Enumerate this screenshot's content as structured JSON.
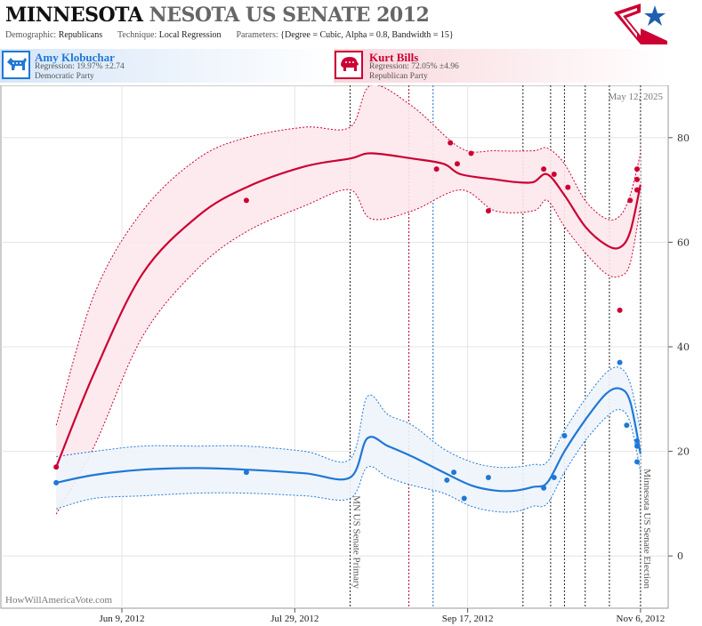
{
  "header": {
    "title_state": "MINNESOTA",
    "title_rest": "NESOTA US SENATE 2012",
    "demographic_label": "Demographic:",
    "demographic_value": "Republicans",
    "technique_label": "Technique:",
    "technique_value": "Local Regression",
    "parameters_label": "Parameters:",
    "parameters_value": "{Degree = Cubic, Alpha = 0.8, Bandwidth = 15}"
  },
  "candidates": {
    "dem": {
      "name": "Amy Klobuchar",
      "regression": "Regression: 19.97% ±2.74",
      "party": "Democratic Party",
      "color": "#1f78d6"
    },
    "rep": {
      "name": "Kurt Bills",
      "regression": "Regression: 72.05% ±4.96",
      "party": "Republican Party",
      "color": "#cc0033"
    }
  },
  "credit": "HowWillAmericaVote.com",
  "date_stamp": "May 12, 2025",
  "chart_data": {
    "type": "line",
    "x_axis": {
      "type": "date",
      "range": [
        "2012-05-05",
        "2012-11-14"
      ],
      "tick_labels": [
        {
          "date": "2012-06-09",
          "label": "Jun 9, 2012"
        },
        {
          "date": "2012-07-29",
          "label": "Jul 29, 2012"
        },
        {
          "date": "2012-09-17",
          "label": "Sep 17, 2012"
        },
        {
          "date": "2012-11-06",
          "label": "Nov 6, 2012"
        }
      ]
    },
    "y_axis": {
      "range": [
        -10,
        90
      ],
      "ticks": [
        0,
        20,
        40,
        60,
        80
      ],
      "position": "right"
    },
    "grid": true,
    "events": [
      {
        "date": "2012-08-14",
        "label": "MN US Senate Primary"
      },
      {
        "date": "2012-11-06",
        "label": "Minnesota US Senate Election"
      }
    ],
    "debate_lines": [
      {
        "date": "2012-08-31",
        "color": "#b0002a"
      },
      {
        "date": "2012-09-07",
        "color": "#1a6fc4"
      },
      {
        "date": "2012-10-03",
        "color": "#222"
      },
      {
        "date": "2012-10-11",
        "color": "#222"
      },
      {
        "date": "2012-10-15",
        "color": "#222"
      },
      {
        "date": "2012-10-21",
        "color": "#222"
      },
      {
        "date": "2012-10-28",
        "color": "#222"
      }
    ],
    "series": [
      {
        "name": "Kurt Bills",
        "color": "#cc0033",
        "band_color": "#fce8ec",
        "polls": [
          {
            "date": "2012-05-21",
            "value": 17
          },
          {
            "date": "2012-07-15",
            "value": 68
          },
          {
            "date": "2012-09-08",
            "value": 74
          },
          {
            "date": "2012-09-12",
            "value": 79
          },
          {
            "date": "2012-09-14",
            "value": 75
          },
          {
            "date": "2012-09-18",
            "value": 77
          },
          {
            "date": "2012-09-23",
            "value": 66
          },
          {
            "date": "2012-10-09",
            "value": 74
          },
          {
            "date": "2012-10-12",
            "value": 73
          },
          {
            "date": "2012-10-16",
            "value": 70.5
          },
          {
            "date": "2012-10-31",
            "value": 47
          },
          {
            "date": "2012-11-03",
            "value": 68
          },
          {
            "date": "2012-11-05",
            "value": 74
          },
          {
            "date": "2012-11-05",
            "value": 72
          },
          {
            "date": "2012-11-05",
            "value": 70
          }
        ],
        "trend": [
          [
            "2012-05-21",
            17
          ],
          [
            "2012-06-01",
            35
          ],
          [
            "2012-06-15",
            54
          ],
          [
            "2012-07-01",
            65
          ],
          [
            "2012-07-15",
            70.5
          ],
          [
            "2012-08-01",
            74.5
          ],
          [
            "2012-08-14",
            76
          ],
          [
            "2012-08-20",
            77
          ],
          [
            "2012-09-01",
            76
          ],
          [
            "2012-09-10",
            75
          ],
          [
            "2012-09-15",
            73
          ],
          [
            "2012-09-25",
            72
          ],
          [
            "2012-10-01",
            71.5
          ],
          [
            "2012-10-06",
            71.5
          ],
          [
            "2012-10-10",
            73
          ],
          [
            "2012-10-15",
            69
          ],
          [
            "2012-10-21",
            63
          ],
          [
            "2012-10-27",
            59.5
          ],
          [
            "2012-10-31",
            59
          ],
          [
            "2012-11-03",
            62
          ],
          [
            "2012-11-06",
            71
          ]
        ],
        "upper": [
          [
            "2012-05-21",
            25
          ],
          [
            "2012-06-01",
            50
          ],
          [
            "2012-06-15",
            66
          ],
          [
            "2012-07-01",
            76
          ],
          [
            "2012-07-15",
            80
          ],
          [
            "2012-08-01",
            82
          ],
          [
            "2012-08-14",
            82
          ],
          [
            "2012-08-20",
            90
          ],
          [
            "2012-09-01",
            86
          ],
          [
            "2012-09-15",
            78
          ],
          [
            "2012-09-25",
            77.5
          ],
          [
            "2012-10-06",
            77.5
          ],
          [
            "2012-10-10",
            78
          ],
          [
            "2012-10-15",
            75
          ],
          [
            "2012-10-21",
            68
          ],
          [
            "2012-10-27",
            64.5
          ],
          [
            "2012-10-31",
            65
          ],
          [
            "2012-11-03",
            69
          ],
          [
            "2012-11-06",
            77
          ]
        ],
        "lower": [
          [
            "2012-05-21",
            8
          ],
          [
            "2012-06-01",
            21
          ],
          [
            "2012-06-15",
            42
          ],
          [
            "2012-07-01",
            55
          ],
          [
            "2012-07-15",
            62
          ],
          [
            "2012-08-01",
            67
          ],
          [
            "2012-08-14",
            70
          ],
          [
            "2012-08-20",
            64.5
          ],
          [
            "2012-09-01",
            66
          ],
          [
            "2012-09-15",
            70
          ],
          [
            "2012-09-25",
            66
          ],
          [
            "2012-10-06",
            66
          ],
          [
            "2012-10-10",
            68
          ],
          [
            "2012-10-15",
            63
          ],
          [
            "2012-10-21",
            58
          ],
          [
            "2012-10-27",
            54
          ],
          [
            "2012-10-31",
            53.5
          ],
          [
            "2012-11-03",
            56
          ],
          [
            "2012-11-06",
            67
          ]
        ]
      },
      {
        "name": "Amy Klobuchar",
        "color": "#1f78d6",
        "band_color": "#eef4fb",
        "polls": [
          {
            "date": "2012-05-21",
            "value": 14
          },
          {
            "date": "2012-07-15",
            "value": 16
          },
          {
            "date": "2012-09-11",
            "value": 14.5
          },
          {
            "date": "2012-09-13",
            "value": 16
          },
          {
            "date": "2012-09-16",
            "value": 11
          },
          {
            "date": "2012-09-23",
            "value": 15
          },
          {
            "date": "2012-10-09",
            "value": 13
          },
          {
            "date": "2012-10-12",
            "value": 15
          },
          {
            "date": "2012-10-15",
            "value": 23
          },
          {
            "date": "2012-10-31",
            "value": 37
          },
          {
            "date": "2012-11-02",
            "value": 25
          },
          {
            "date": "2012-11-05",
            "value": 18
          },
          {
            "date": "2012-11-05",
            "value": 21
          },
          {
            "date": "2012-11-05",
            "value": 22
          }
        ],
        "trend": [
          [
            "2012-05-21",
            14
          ],
          [
            "2012-06-01",
            15.5
          ],
          [
            "2012-06-15",
            16.5
          ],
          [
            "2012-07-01",
            16.8
          ],
          [
            "2012-07-15",
            16.5
          ],
          [
            "2012-08-01",
            15.8
          ],
          [
            "2012-08-14",
            15
          ],
          [
            "2012-08-19",
            22.5
          ],
          [
            "2012-08-25",
            21
          ],
          [
            "2012-09-01",
            19
          ],
          [
            "2012-09-10",
            16
          ],
          [
            "2012-09-18",
            13.5
          ],
          [
            "2012-09-25",
            12.5
          ],
          [
            "2012-10-01",
            12.5
          ],
          [
            "2012-10-06",
            13.2
          ],
          [
            "2012-10-10",
            14
          ],
          [
            "2012-10-15",
            20
          ],
          [
            "2012-10-21",
            26
          ],
          [
            "2012-10-27",
            31
          ],
          [
            "2012-10-31",
            32
          ],
          [
            "2012-11-03",
            29.5
          ],
          [
            "2012-11-06",
            19.5
          ]
        ],
        "upper": [
          [
            "2012-05-21",
            19
          ],
          [
            "2012-06-01",
            20
          ],
          [
            "2012-06-15",
            21
          ],
          [
            "2012-07-01",
            21
          ],
          [
            "2012-07-15",
            21
          ],
          [
            "2012-08-01",
            20
          ],
          [
            "2012-08-14",
            18.5
          ],
          [
            "2012-08-19",
            30.5
          ],
          [
            "2012-08-25",
            27
          ],
          [
            "2012-09-01",
            25
          ],
          [
            "2012-09-10",
            20.5
          ],
          [
            "2012-09-18",
            18
          ],
          [
            "2012-09-25",
            17
          ],
          [
            "2012-10-01",
            17
          ],
          [
            "2012-10-06",
            17.5
          ],
          [
            "2012-10-10",
            18
          ],
          [
            "2012-10-15",
            24
          ],
          [
            "2012-10-21",
            30
          ],
          [
            "2012-10-27",
            35
          ],
          [
            "2012-10-31",
            36
          ],
          [
            "2012-11-03",
            33
          ],
          [
            "2012-11-06",
            24
          ]
        ],
        "lower": [
          [
            "2012-05-21",
            9
          ],
          [
            "2012-06-01",
            11
          ],
          [
            "2012-06-15",
            11.5
          ],
          [
            "2012-07-01",
            12
          ],
          [
            "2012-07-15",
            12
          ],
          [
            "2012-08-01",
            11.5
          ],
          [
            "2012-08-14",
            11
          ],
          [
            "2012-08-19",
            17
          ],
          [
            "2012-08-25",
            15
          ],
          [
            "2012-09-01",
            13.5
          ],
          [
            "2012-09-10",
            12
          ],
          [
            "2012-09-18",
            9.5
          ],
          [
            "2012-09-25",
            8.5
          ],
          [
            "2012-10-01",
            8.5
          ],
          [
            "2012-10-06",
            9.5
          ],
          [
            "2012-10-10",
            10
          ],
          [
            "2012-10-15",
            16
          ],
          [
            "2012-10-21",
            22
          ],
          [
            "2012-10-27",
            26.5
          ],
          [
            "2012-10-31",
            28
          ],
          [
            "2012-11-03",
            25.5
          ],
          [
            "2012-11-06",
            16
          ]
        ]
      }
    ]
  }
}
